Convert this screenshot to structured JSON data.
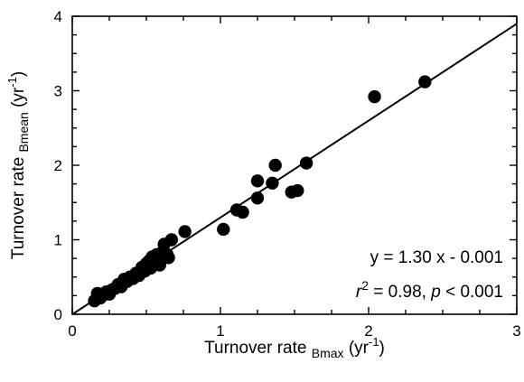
{
  "chart_data": {
    "type": "scatter",
    "xlabel": {
      "main": "Turnover rate ",
      "sub": "Bmax",
      "unit_open": " (yr",
      "unit_exp": "-1",
      "unit_close": ")"
    },
    "ylabel": {
      "main": "Turnover rate ",
      "sub": "Bmean",
      "unit_open": " (yr",
      "unit_exp": "-1",
      "unit_close": ")"
    },
    "xlim": [
      0,
      3
    ],
    "ylim": [
      0,
      4
    ],
    "x_ticks": [
      0,
      1,
      2,
      3
    ],
    "y_ticks": [
      0,
      1,
      2,
      3,
      4
    ],
    "x_tick_labels": [
      "0",
      "1",
      "2",
      "3"
    ],
    "y_tick_labels": [
      "0",
      "1",
      "2",
      "3",
      "4"
    ],
    "grid": false,
    "regression": {
      "slope": 1.3,
      "intercept": -0.001
    },
    "annotation": {
      "equation": "y = 1.30 x - 0.001",
      "r_var": "r",
      "r_exp": "2",
      "r_rest": " = 0.98, ",
      "p_var": "p",
      "p_rest": " < 0.001"
    },
    "points": [
      [
        0.15,
        0.18
      ],
      [
        0.17,
        0.28
      ],
      [
        0.19,
        0.22
      ],
      [
        0.21,
        0.26
      ],
      [
        0.23,
        0.3
      ],
      [
        0.25,
        0.27
      ],
      [
        0.27,
        0.33
      ],
      [
        0.29,
        0.35
      ],
      [
        0.31,
        0.4
      ],
      [
        0.33,
        0.37
      ],
      [
        0.35,
        0.47
      ],
      [
        0.37,
        0.44
      ],
      [
        0.39,
        0.5
      ],
      [
        0.41,
        0.48
      ],
      [
        0.43,
        0.55
      ],
      [
        0.45,
        0.52
      ],
      [
        0.47,
        0.63
      ],
      [
        0.49,
        0.58
      ],
      [
        0.5,
        0.68
      ],
      [
        0.52,
        0.72
      ],
      [
        0.53,
        0.62
      ],
      [
        0.54,
        0.77
      ],
      [
        0.56,
        0.73
      ],
      [
        0.57,
        0.8
      ],
      [
        0.58,
        0.68
      ],
      [
        0.59,
        0.66
      ],
      [
        0.6,
        0.82
      ],
      [
        0.62,
        0.94
      ],
      [
        0.64,
        0.8
      ],
      [
        0.65,
        0.76
      ],
      [
        0.67,
        1.0
      ],
      [
        0.76,
        1.11
      ],
      [
        1.02,
        1.14
      ],
      [
        1.11,
        1.4
      ],
      [
        1.15,
        1.37
      ],
      [
        1.25,
        1.56
      ],
      [
        1.25,
        1.79
      ],
      [
        1.35,
        1.76
      ],
      [
        1.37,
        2.0
      ],
      [
        1.48,
        1.64
      ],
      [
        1.52,
        1.66
      ],
      [
        1.58,
        2.03
      ],
      [
        2.04,
        2.92
      ],
      [
        2.38,
        3.12
      ]
    ]
  }
}
